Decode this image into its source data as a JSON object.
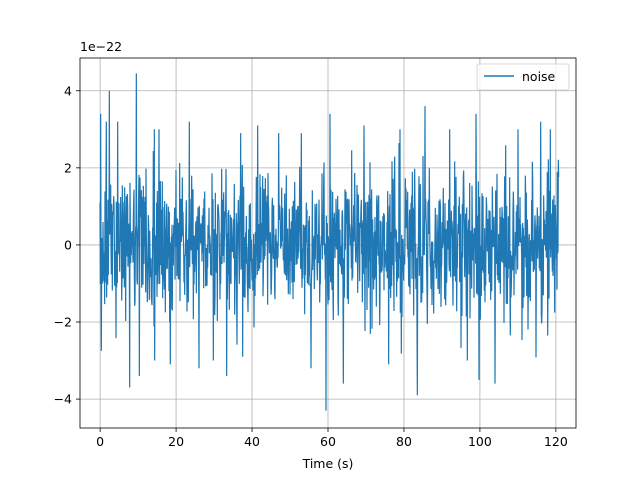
{
  "chart_data": {
    "type": "line",
    "title": "",
    "xlabel": "Time (s)",
    "ylabel": "",
    "y_offset_text": "1e−22",
    "xlim": [
      -5.3,
      125.3
    ],
    "ylim": [
      -4.75,
      4.85
    ],
    "y_scale_factor": 1e-22,
    "xticks": [
      0,
      20,
      40,
      60,
      80,
      100,
      120
    ],
    "yticks": [
      -4,
      -2,
      0,
      2,
      4
    ],
    "xtick_labels": [
      "0",
      "20",
      "40",
      "60",
      "80",
      "100",
      "120"
    ],
    "ytick_labels": [
      "−4",
      "−2",
      "0",
      "2",
      "4"
    ],
    "grid": true,
    "legend_position": "upper-right",
    "colors": {
      "line": "#1f77b4",
      "grid": "#b0b0b0",
      "axes": "#000000",
      "legend_border": "#cccccc"
    },
    "series": [
      {
        "name": "noise",
        "x_start": 0,
        "x_end": 120.5,
        "noise_scale": 0.95,
        "peaks": [
          {
            "x": 0.1,
            "y": 3.4
          },
          {
            "x": 0.3,
            "y": -2.75
          },
          {
            "x": 1.6,
            "y": 3.2
          },
          {
            "x": 2.4,
            "y": 4.0
          },
          {
            "x": 4.6,
            "y": 3.2
          },
          {
            "x": 7.8,
            "y": -3.7
          },
          {
            "x": 9.5,
            "y": 4.45
          },
          {
            "x": 10.3,
            "y": -3.4
          },
          {
            "x": 15.5,
            "y": 3.0
          },
          {
            "x": 18.5,
            "y": -3.1
          },
          {
            "x": 23.5,
            "y": 3.2
          },
          {
            "x": 26.0,
            "y": -3.2
          },
          {
            "x": 33.3,
            "y": -3.4
          },
          {
            "x": 37.0,
            "y": 2.9
          },
          {
            "x": 37.5,
            "y": -2.9
          },
          {
            "x": 41.5,
            "y": 3.1
          },
          {
            "x": 47.0,
            "y": 2.9
          },
          {
            "x": 53.0,
            "y": 2.9
          },
          {
            "x": 55.5,
            "y": -3.2
          },
          {
            "x": 59.5,
            "y": -4.3
          },
          {
            "x": 60.5,
            "y": 3.4
          },
          {
            "x": 64.0,
            "y": -3.6
          },
          {
            "x": 69.5,
            "y": 3.1
          },
          {
            "x": 76.0,
            "y": -3.1
          },
          {
            "x": 79.0,
            "y": 3.0
          },
          {
            "x": 83.5,
            "y": -3.9
          },
          {
            "x": 85.5,
            "y": 3.6
          },
          {
            "x": 92.0,
            "y": 3.0
          },
          {
            "x": 99.0,
            "y": 3.4
          },
          {
            "x": 99.8,
            "y": -3.5
          },
          {
            "x": 104.0,
            "y": -3.6
          },
          {
            "x": 110.0,
            "y": 3.0
          },
          {
            "x": 116.0,
            "y": 3.2
          },
          {
            "x": 118.5,
            "y": 3.0
          }
        ]
      }
    ]
  }
}
